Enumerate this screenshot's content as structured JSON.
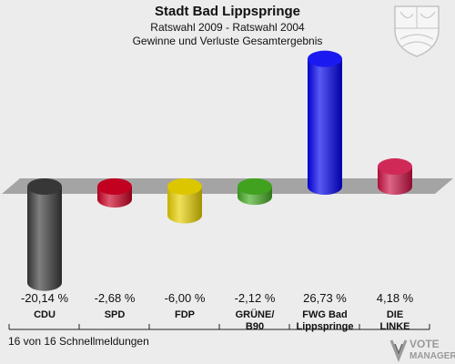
{
  "title": "Stadt Bad Lippspringe",
  "subtitle1": "Ratswahl 2009 - Ratswahl 2004",
  "subtitle2": "Gewinne und Verluste Gesamtergebnis",
  "footnote": "16 von 16 Schnellmeldungen",
  "logo": {
    "line1": "VOTE",
    "line2": "MANAGER"
  },
  "chart_data": {
    "type": "bar",
    "title": "Stadt Bad Lippspringe",
    "categories": [
      "CDU",
      "SPD",
      "FDP",
      "GRÜNE/ B90",
      "FWG Bad Lippspringe",
      "DIE LINKE"
    ],
    "category_lines": [
      [
        "CDU"
      ],
      [
        "SPD"
      ],
      [
        "FDP"
      ],
      [
        "GRÜNE/",
        "B90"
      ],
      [
        "FWG Bad",
        "Lippspringe"
      ],
      [
        "DIE",
        "LINKE"
      ]
    ],
    "values": [
      -20.14,
      -2.68,
      -6.0,
      -2.12,
      26.73,
      4.18
    ],
    "value_labels": [
      "-20,14 %",
      "-2,68 %",
      "-6,00 %",
      "-2,12 %",
      "26,73 %",
      "4,18 %"
    ],
    "colors": [
      "#3a3a3a",
      "#cc0022",
      "#e8d000",
      "#44aa22",
      "#0000ee",
      "#cc1144"
    ],
    "ylim": [
      -30,
      30
    ],
    "grid": false,
    "legend": "none"
  }
}
